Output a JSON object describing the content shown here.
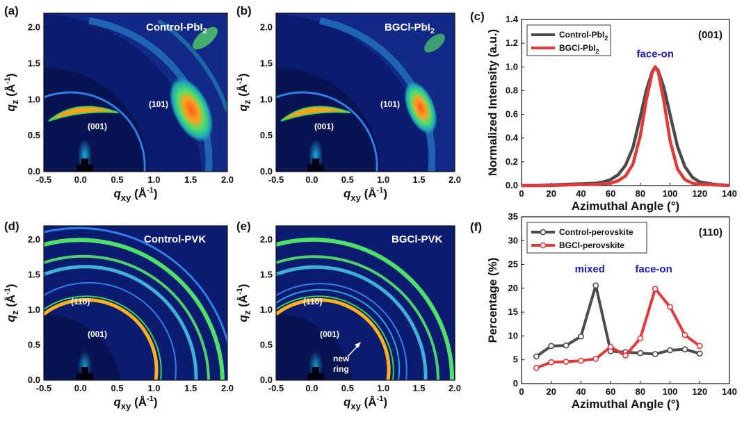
{
  "colors": {
    "map_background": "#0a1a6a",
    "map_inner": "#071451",
    "map_ring": "#2f7fe8",
    "map_ring_bright": "#4fe06a",
    "map_hot": "#ffa21e",
    "control": "#4b4b4b",
    "bgci": "#e23a3a",
    "annotation": "#1a1ab8"
  },
  "maps": {
    "xlabel_main": "q",
    "xlabel_sub": "xy",
    "xlabel_unit": " (Å",
    "ylabel_main": "q",
    "ylabel_sub": "z",
    "ylabel_unit": " (Å",
    "unit_exp": "-1",
    "unit_close": ")",
    "x_ticks": [
      "-0.5",
      "0.0",
      "0.5",
      "1.0",
      "1.5",
      "2.0"
    ],
    "y_ticks": [
      "0.0",
      "0.5",
      "1.0",
      "1.5",
      "2.0"
    ],
    "x_range": [
      -0.5,
      2.0
    ],
    "y_range": [
      0.0,
      2.2
    ],
    "panels": {
      "a": {
        "letter": "(a)",
        "title_main": "Control-PbI",
        "title_sub": "2",
        "peak_001": "(001)",
        "peak_101": "(101)"
      },
      "b": {
        "letter": "(b)",
        "title_main": "BGCl-PbI",
        "title_sub": "2",
        "peak_001": "(001)",
        "peak_101": "(101)"
      },
      "d": {
        "letter": "(d)",
        "title": "Control-PVK",
        "peak_110": "(110)",
        "peak_001": "(001)"
      },
      "e": {
        "letter": "(e)",
        "title": "BGCl-PVK",
        "peak_110": "(110)",
        "peak_001": "(001)",
        "new_ring_1": "new",
        "new_ring_2": "ring"
      }
    }
  },
  "chart_data": [
    {
      "id": "c",
      "type": "line",
      "letter": "(c)",
      "reflection": "(001)",
      "annotation": "face-on",
      "annotation_at": [
        90,
        1.08
      ],
      "xlabel": "Azimuthal Angle (°)",
      "ylabel": "Normalized Intensity (a.u.)",
      "xlim": [
        0,
        140
      ],
      "ylim": [
        0,
        1.4
      ],
      "x_ticks": [
        0,
        20,
        40,
        60,
        80,
        100,
        120,
        140
      ],
      "y_ticks": [
        0.0,
        0.2,
        0.4,
        0.6,
        0.8,
        1.0,
        1.2,
        1.4
      ],
      "y_tick_labels": [
        "0.0",
        "0.2",
        "0.4",
        "0.6",
        "0.8",
        "1.0",
        "1.2",
        "1.4"
      ],
      "legend": [
        {
          "main": "Control-PbI",
          "sub": "2"
        },
        {
          "main": "BGCl-PbI",
          "sub": "2"
        }
      ],
      "series": [
        {
          "name": "Control-PbI2",
          "x": [
            0,
            10,
            20,
            30,
            40,
            50,
            55,
            60,
            65,
            70,
            75,
            80,
            84,
            88,
            90,
            92,
            96,
            100,
            105,
            110,
            115,
            120,
            130,
            140
          ],
          "values": [
            0.0,
            0.0,
            0.005,
            0.01,
            0.015,
            0.02,
            0.03,
            0.05,
            0.09,
            0.17,
            0.32,
            0.58,
            0.8,
            0.96,
            1.0,
            0.97,
            0.82,
            0.6,
            0.33,
            0.16,
            0.07,
            0.03,
            0.01,
            0.0
          ]
        },
        {
          "name": "BGCl-PbI2",
          "x": [
            0,
            10,
            20,
            30,
            40,
            50,
            55,
            60,
            65,
            70,
            75,
            80,
            84,
            88,
            90,
            92,
            96,
            100,
            105,
            110,
            115,
            120,
            130,
            140
          ],
          "values": [
            0.0,
            0.0,
            0.0,
            0.005,
            0.008,
            0.01,
            0.015,
            0.02,
            0.04,
            0.08,
            0.18,
            0.42,
            0.72,
            0.95,
            1.0,
            0.96,
            0.7,
            0.38,
            0.14,
            0.05,
            0.02,
            0.01,
            0.005,
            0.0
          ]
        }
      ]
    },
    {
      "id": "f",
      "type": "line",
      "letter": "(f)",
      "reflection": "(110)",
      "annotation_mixed": "mixed",
      "annotation_mixed_at": [
        46,
        23.3
      ],
      "annotation_faceon": "face-on",
      "annotation_faceon_at": [
        89,
        23.3
      ],
      "xlabel": "Azimuthal Angle (°)",
      "ylabel": "Percentage (%)",
      "xlim": [
        0,
        140
      ],
      "ylim": [
        0,
        35
      ],
      "x_ticks": [
        0,
        20,
        40,
        60,
        80,
        100,
        120,
        140
      ],
      "y_ticks": [
        0,
        5,
        10,
        15,
        20,
        25,
        30,
        35
      ],
      "y_tick_labels": [
        "0",
        "5",
        "10",
        "15",
        "20",
        "25",
        "30",
        "35"
      ],
      "legend": [
        {
          "main": "Control-perovskite",
          "sub": ""
        },
        {
          "main": "BGCl-perovskite",
          "sub": ""
        }
      ],
      "series": [
        {
          "name": "Control-perovskite",
          "x": [
            10,
            20,
            30,
            40,
            50,
            60,
            70,
            80,
            90,
            100,
            110,
            120
          ],
          "values": [
            5.7,
            7.9,
            8.0,
            9.9,
            20.6,
            6.8,
            6.6,
            6.4,
            6.2,
            7.0,
            7.2,
            6.3
          ]
        },
        {
          "name": "BGCl-perovskite",
          "x": [
            10,
            20,
            30,
            40,
            50,
            60,
            70,
            80,
            90,
            100,
            110,
            120
          ],
          "values": [
            3.3,
            4.5,
            4.6,
            4.8,
            5.2,
            7.7,
            5.9,
            9.5,
            19.9,
            16.1,
            10.2,
            7.9
          ]
        }
      ]
    }
  ]
}
